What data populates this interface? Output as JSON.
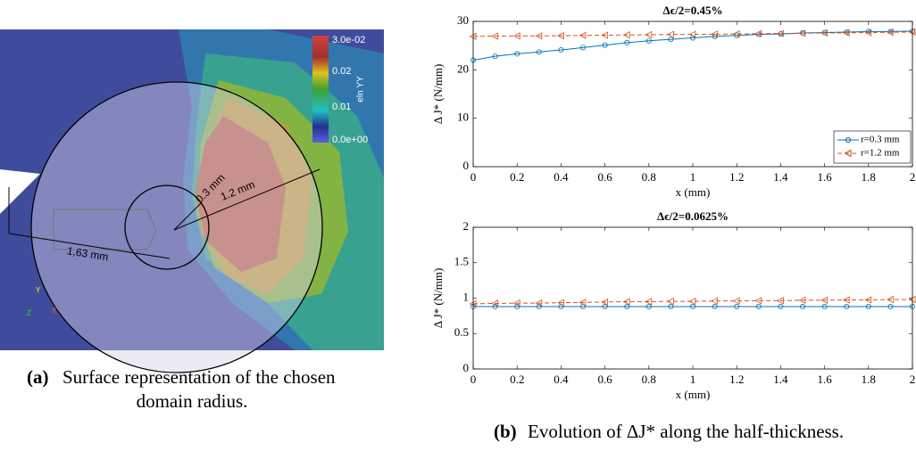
{
  "figure_a": {
    "colorbar": {
      "labels": [
        "3.0e-02",
        "0.02",
        "0.01",
        "0.0e+00"
      ],
      "title": "eln YY"
    },
    "dimensions": [
      "0.3 mm",
      "1.2 mm",
      "1,63 mm"
    ],
    "triad": [
      "Y",
      "Z",
      "X"
    ],
    "caption": {
      "label": "(a)",
      "text_lines": [
        "Surface representation of the chosen",
        "domain radius."
      ]
    }
  },
  "caption_b": {
    "label": "(b)",
    "text": "Evolution of ΔJ* along the half-thickness."
  },
  "chart_data": [
    {
      "type": "line",
      "title": "Δϵ/2=0.45%",
      "xlabel": "x (mm)",
      "ylabel": "Δ J* (N/mm)",
      "x": [
        0,
        0.1,
        0.2,
        0.3,
        0.4,
        0.5,
        0.6,
        0.7,
        0.8,
        0.9,
        1,
        1.1,
        1.2,
        1.3,
        1.4,
        1.5,
        1.6,
        1.7,
        1.8,
        1.9,
        2
      ],
      "series": [
        {
          "name": "r=0.3 mm",
          "color": "#0072bd",
          "linestyle": "solid",
          "marker": "circle",
          "values": [
            22.0,
            22.8,
            23.3,
            23.7,
            24.1,
            24.6,
            25.1,
            25.6,
            26.0,
            26.3,
            26.6,
            26.9,
            27.1,
            27.3,
            27.4,
            27.6,
            27.7,
            27.8,
            27.9,
            27.9,
            28.0
          ]
        },
        {
          "name": "r=1.2 mm",
          "color": "#d95319",
          "linestyle": "dashed",
          "marker": "triangle-left",
          "values": [
            26.9,
            26.95,
            27.0,
            27.0,
            27.05,
            27.1,
            27.15,
            27.2,
            27.25,
            27.3,
            27.3,
            27.35,
            27.4,
            27.45,
            27.5,
            27.55,
            27.6,
            27.65,
            27.7,
            27.75,
            27.8
          ]
        }
      ],
      "xlim": [
        0,
        2
      ],
      "xticks": [
        0,
        0.2,
        0.4,
        0.6,
        0.8,
        1,
        1.2,
        1.4,
        1.6,
        1.8,
        2
      ],
      "ylim": [
        0,
        30
      ],
      "yticks": [
        0,
        10,
        20,
        30
      ],
      "legend": "lower right"
    },
    {
      "type": "line",
      "title": "Δϵ/2=0.0625%",
      "xlabel": "x (mm)",
      "ylabel": "Δ J* (N/mm)",
      "x": [
        0,
        0.1,
        0.2,
        0.3,
        0.4,
        0.5,
        0.6,
        0.7,
        0.8,
        0.9,
        1,
        1.1,
        1.2,
        1.3,
        1.4,
        1.5,
        1.6,
        1.7,
        1.8,
        1.9,
        2
      ],
      "series": [
        {
          "name": "r=0.3 mm",
          "color": "#0072bd",
          "linestyle": "solid",
          "marker": "circle",
          "values": [
            0.88,
            0.88,
            0.88,
            0.88,
            0.88,
            0.88,
            0.88,
            0.88,
            0.88,
            0.88,
            0.88,
            0.88,
            0.88,
            0.88,
            0.88,
            0.88,
            0.88,
            0.88,
            0.88,
            0.88,
            0.88
          ]
        },
        {
          "name": "r=1.2 mm",
          "color": "#d95319",
          "linestyle": "dashed",
          "marker": "triangle-left",
          "values": [
            0.92,
            0.925,
            0.93,
            0.93,
            0.935,
            0.94,
            0.945,
            0.95,
            0.95,
            0.955,
            0.955,
            0.96,
            0.96,
            0.965,
            0.965,
            0.97,
            0.97,
            0.975,
            0.975,
            0.98,
            0.98
          ]
        }
      ],
      "xlim": [
        0,
        2
      ],
      "xticks": [
        0,
        0.2,
        0.4,
        0.6,
        0.8,
        1,
        1.2,
        1.4,
        1.6,
        1.8,
        2
      ],
      "ylim": [
        0,
        2
      ],
      "yticks": [
        0,
        0.5,
        1,
        1.5,
        2
      ],
      "legend": "none"
    }
  ]
}
